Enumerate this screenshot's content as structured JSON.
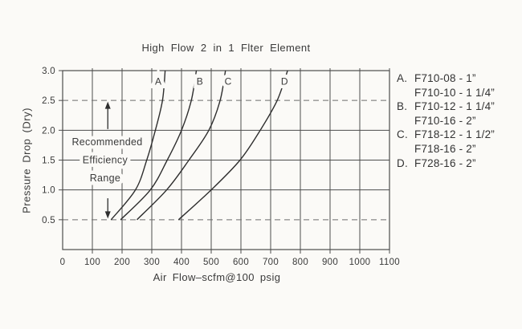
{
  "page": {
    "background": "#fbfaf7",
    "ink": "#3a3a3a",
    "grid_color": "#4d4d4d",
    "curve_color": "#2e2e2e",
    "dashed_color": "#6e6e6e"
  },
  "chart_data": {
    "type": "line",
    "title": "High Flow 2 in 1 Flter Element",
    "xlabel": "Air Flow–scfm@100 psig",
    "ylabel": "Pressure Drop (Dry)",
    "xlim": [
      0,
      1100
    ],
    "ylim": [
      0,
      3.0
    ],
    "grid": "on",
    "x_ticks": [
      {
        "v": 0,
        "label": "0"
      },
      {
        "v": 100,
        "label": "100"
      },
      {
        "v": 200,
        "label": "200"
      },
      {
        "v": 300,
        "label": "300"
      },
      {
        "v": 400,
        "label": "400"
      },
      {
        "v": 500,
        "label": "500"
      },
      {
        "v": 600,
        "label": "600"
      },
      {
        "v": 700,
        "label": "700"
      },
      {
        "v": 800,
        "label": "800"
      },
      {
        "v": 900,
        "label": "900"
      },
      {
        "v": 1000,
        "label": "1000"
      },
      {
        "v": 1100,
        "label": "1100"
      }
    ],
    "y_ticks": [
      {
        "v": 3.0,
        "label": "3.0"
      },
      {
        "v": 2.5,
        "label": "2.5"
      },
      {
        "v": 2.0,
        "label": "2.0"
      },
      {
        "v": 1.5,
        "label": "1.5"
      },
      {
        "v": 1.0,
        "label": "1.0"
      },
      {
        "v": 0.5,
        "label": "0.5"
      }
    ],
    "dashed_y_levels": [
      0.5,
      2.5
    ],
    "series": [
      {
        "name": "A",
        "points": [
          [
            163,
            0.5
          ],
          [
            245,
            1.0
          ],
          [
            283,
            1.5
          ],
          [
            312,
            2.0
          ],
          [
            336,
            2.5
          ],
          [
            345,
            3.0
          ]
        ],
        "label_x": 322,
        "label_y": 2.82
      },
      {
        "name": "B",
        "points": [
          [
            195,
            0.5
          ],
          [
            295,
            1.0
          ],
          [
            352,
            1.5
          ],
          [
            400,
            2.0
          ],
          [
            433,
            2.5
          ],
          [
            450,
            3.0
          ]
        ],
        "label_x": 462,
        "label_y": 2.82
      },
      {
        "name": "C",
        "points": [
          [
            250,
            0.5
          ],
          [
            350,
            1.0
          ],
          [
            425,
            1.5
          ],
          [
            492,
            2.0
          ],
          [
            530,
            2.5
          ],
          [
            548,
            3.0
          ]
        ],
        "label_x": 557,
        "label_y": 2.82
      },
      {
        "name": "D",
        "points": [
          [
            390,
            0.5
          ],
          [
            500,
            1.0
          ],
          [
            597,
            1.5
          ],
          [
            665,
            2.0
          ],
          [
            722,
            2.5
          ],
          [
            757,
            3.0
          ]
        ],
        "label_x": 747,
        "label_y": 2.82
      }
    ],
    "annotation": {
      "lines": [
        {
          "text": "Recommended",
          "x": 150,
          "y": 1.8
        },
        {
          "text": "Efficiency",
          "x": 143,
          "y": 1.5
        },
        {
          "text": "Range",
          "x": 143,
          "y": 1.2
        }
      ],
      "arrow_x": 152,
      "range_top": 2.5,
      "range_bottom": 0.5,
      "upper_arrow": [
        2.02,
        2.48
      ],
      "lower_arrow": [
        0.86,
        0.52
      ]
    }
  },
  "legend": {
    "items": [
      {
        "prefix": "A.",
        "label": "F710-08 - 1”"
      },
      {
        "prefix": "",
        "label": "F710-10 - 1 1/4”"
      },
      {
        "prefix": "B.",
        "label": "F710-12 - 1 1/4”"
      },
      {
        "prefix": "",
        "label": "F710-16 - 2”"
      },
      {
        "prefix": "C.",
        "label": "F718-12 - 1 1/2”"
      },
      {
        "prefix": "",
        "label": "F718-16 - 2”"
      },
      {
        "prefix": "D.",
        "label": "F728-16 - 2”"
      }
    ]
  }
}
